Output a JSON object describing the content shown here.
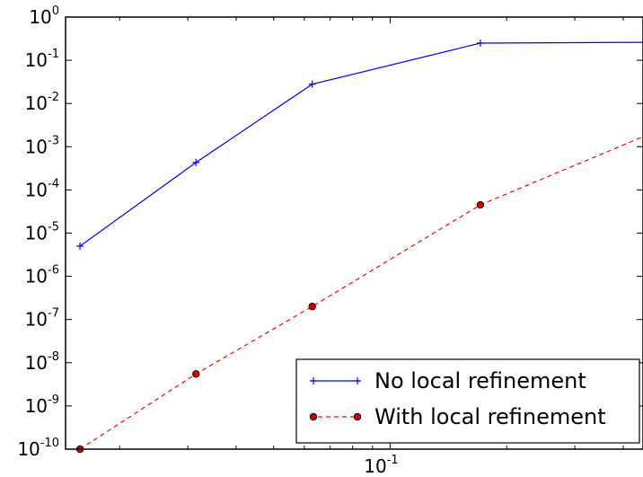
{
  "chart_data": {
    "type": "line",
    "title": "",
    "xlabel": "",
    "ylabel": "",
    "x_scale": "log",
    "y_scale": "log",
    "xlim": [
      0.0145,
      0.45
    ],
    "ylim": [
      1e-10,
      1
    ],
    "grid": false,
    "legend_position": "lower-right",
    "x_ticks": [
      {
        "value": 0.1,
        "base": "10",
        "exp": "-1"
      }
    ],
    "y_ticks": [
      {
        "value": 1,
        "base": "10",
        "exp": "0"
      },
      {
        "value": 0.1,
        "base": "10",
        "exp": "-1"
      },
      {
        "value": 0.01,
        "base": "10",
        "exp": "-2"
      },
      {
        "value": 0.001,
        "base": "10",
        "exp": "-3"
      },
      {
        "value": 0.0001,
        "base": "10",
        "exp": "-4"
      },
      {
        "value": 1e-05,
        "base": "10",
        "exp": "-5"
      },
      {
        "value": 1e-06,
        "base": "10",
        "exp": "-6"
      },
      {
        "value": 1e-07,
        "base": "10",
        "exp": "-7"
      },
      {
        "value": 1e-08,
        "base": "10",
        "exp": "-8"
      },
      {
        "value": 1e-09,
        "base": "10",
        "exp": "-9"
      },
      {
        "value": 1e-10,
        "base": "10",
        "exp": "-10"
      }
    ],
    "series": [
      {
        "name": "No local refinement",
        "color": "#0000ff",
        "line_style": "solid",
        "marker": "plus",
        "x": [
          0.0158,
          0.0315,
          0.0629,
          0.171,
          0.45
        ],
        "y": [
          5e-06,
          0.00043,
          0.028,
          0.25,
          0.26
        ],
        "marker_count": 4
      },
      {
        "name": "With local refinement",
        "color": "#ff0000",
        "marker_fill": "#cc0000",
        "line_style": "dashed",
        "marker": "circle",
        "x": [
          0.0158,
          0.0315,
          0.0629,
          0.171,
          0.45
        ],
        "y": [
          1e-10,
          5.5e-09,
          2e-07,
          4.5e-05,
          0.0017
        ],
        "marker_count": 4
      }
    ]
  }
}
